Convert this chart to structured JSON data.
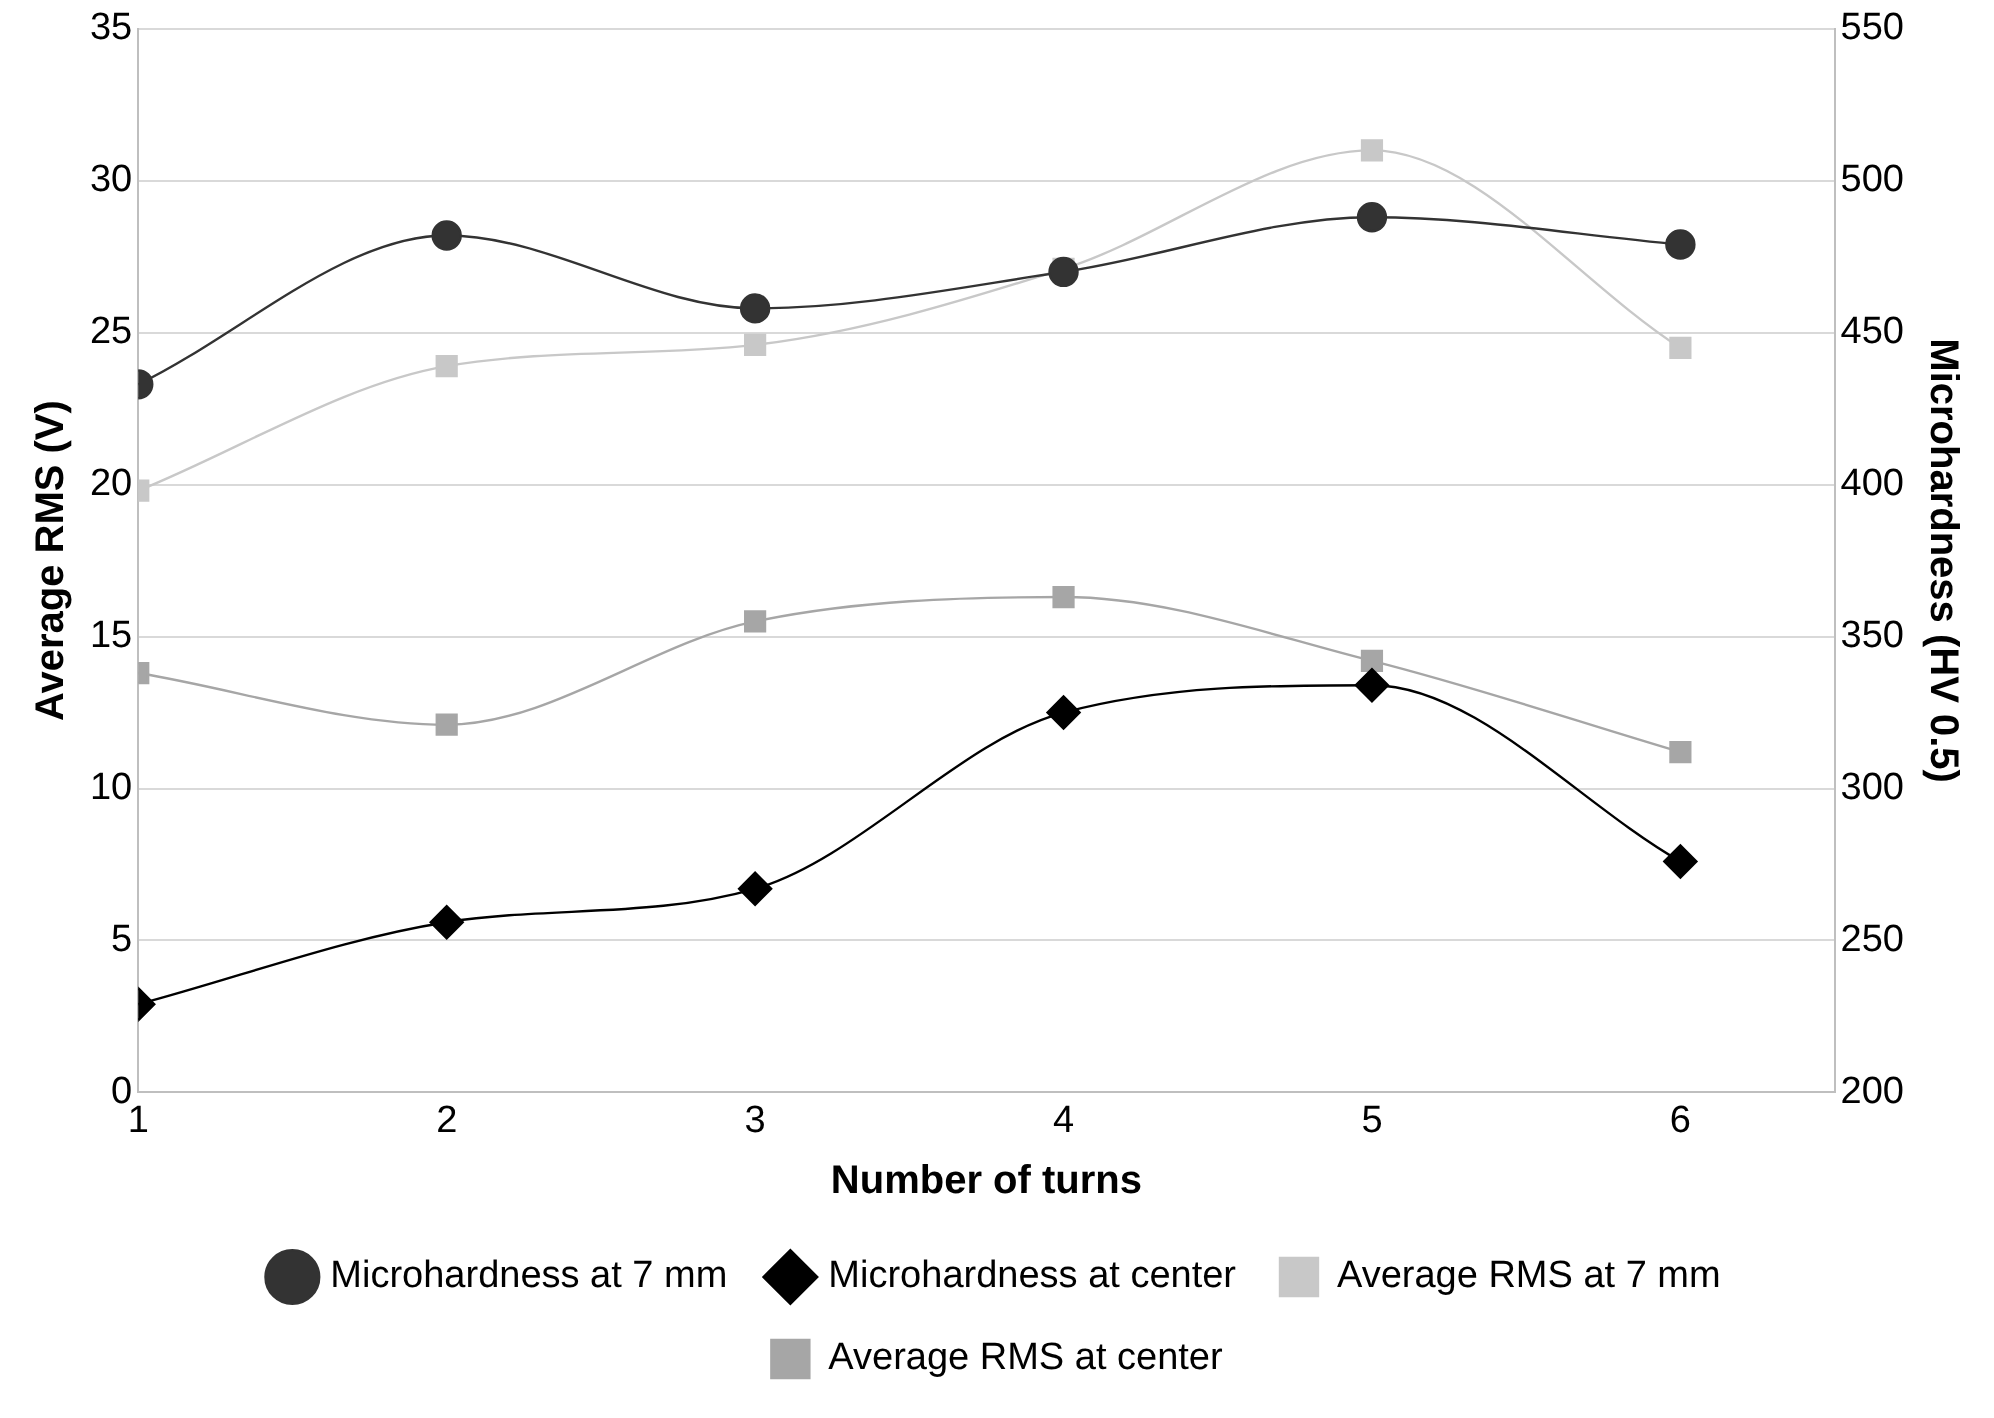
{
  "chart_data": {
    "type": "line",
    "xlabel": "Number of turns",
    "ylabel": "Average RMS (V)",
    "y2label": "Microhardness (HV 0.5)",
    "x": [
      1,
      2,
      3,
      4,
      5,
      6
    ],
    "xlim": [
      1,
      6.5
    ],
    "xticks": [
      1,
      2,
      3,
      4,
      5,
      6
    ],
    "ylim": [
      0,
      35
    ],
    "yticks": [
      0,
      5,
      10,
      15,
      20,
      25,
      30,
      35
    ],
    "y2lim": [
      200,
      550
    ],
    "y2ticks": [
      200,
      250,
      300,
      350,
      400,
      450,
      500,
      550
    ],
    "grid": "y",
    "legend": "bottom",
    "series": [
      {
        "name": "Average RMS at center",
        "color": "#a6a6a6",
        "marker": "square",
        "values": [
          13.8,
          12.1,
          15.5,
          16.3,
          14.2,
          11.2
        ]
      },
      {
        "name": "Average RMS at 7 mm",
        "color": "#c8c8c8",
        "marker": "square",
        "values": [
          19.8,
          23.9,
          24.6,
          27.1,
          31.0,
          24.5
        ]
      },
      {
        "name": "Microhardness at center",
        "color": "#000000",
        "marker": "diamond",
        "axis": "y2",
        "values": [
          229,
          256,
          267,
          325,
          334,
          276
        ]
      },
      {
        "name": "Microhardness at 7 mm",
        "color": "#333333",
        "marker": "circle",
        "axis": "y2",
        "values": [
          433,
          482,
          458,
          470,
          488,
          479
        ]
      }
    ]
  }
}
